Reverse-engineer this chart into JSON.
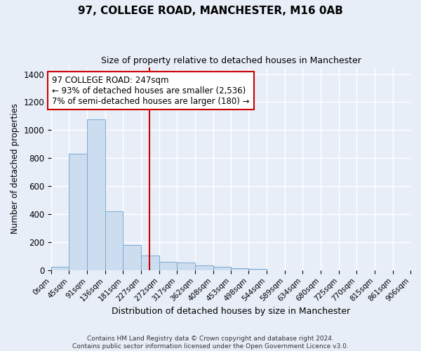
{
  "title": "97, COLLEGE ROAD, MANCHESTER, M16 0AB",
  "subtitle": "Size of property relative to detached houses in Manchester",
  "xlabel": "Distribution of detached houses by size in Manchester",
  "ylabel": "Number of detached properties",
  "bar_color": "#ccddf0",
  "bar_edge_color": "#7aaad0",
  "background_color": "#e8eef8",
  "grid_color": "#ffffff",
  "annotation_box_color": "#ffffff",
  "annotation_border_color": "#cc0000",
  "red_line_x": 247,
  "annotation_text_line1": "97 COLLEGE ROAD: 247sqm",
  "annotation_text_line2": "← 93% of detached houses are smaller (2,536)",
  "annotation_text_line3": "7% of semi-detached houses are larger (180) →",
  "ylim": [
    0,
    1450
  ],
  "yticks": [
    0,
    200,
    400,
    600,
    800,
    1000,
    1200,
    1400
  ],
  "bin_edges": [
    0,
    45,
    91,
    136,
    181,
    227,
    272,
    317,
    362,
    408,
    453,
    498,
    544,
    589,
    634,
    680,
    725,
    770,
    815,
    861,
    906
  ],
  "bar_heights": [
    25,
    830,
    1075,
    420,
    180,
    105,
    60,
    55,
    35,
    25,
    15,
    10,
    0,
    0,
    0,
    0,
    0,
    0,
    0,
    0
  ],
  "tick_labels": [
    "0sqm",
    "45sqm",
    "91sqm",
    "136sqm",
    "181sqm",
    "227sqm",
    "272sqm",
    "317sqm",
    "362sqm",
    "408sqm",
    "453sqm",
    "498sqm",
    "544sqm",
    "589sqm",
    "634sqm",
    "680sqm",
    "725sqm",
    "770sqm",
    "815sqm",
    "861sqm",
    "906sqm"
  ],
  "footer_line1": "Contains HM Land Registry data © Crown copyright and database right 2024.",
  "footer_line2": "Contains public sector information licensed under the Open Government Licence v3.0."
}
